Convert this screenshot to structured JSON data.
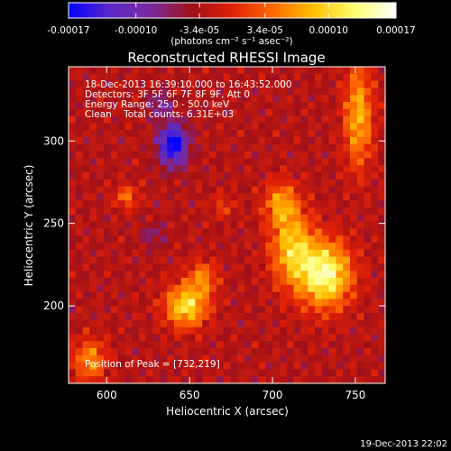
{
  "chart_data": {
    "type": "heatmap",
    "title": "Reconstructed RHESSI Image",
    "xlabel": "Heliocentric X (arcsec)",
    "ylabel": "Heliocentric Y (arcsec)",
    "xlim": [
      577,
      768
    ],
    "ylim": [
      153,
      345
    ],
    "x_ticks": [
      600,
      650,
      700,
      750
    ],
    "y_ticks": [
      200,
      250,
      300
    ],
    "x_tick_labels": [
      "600",
      "650",
      "700",
      "750"
    ],
    "y_tick_labels": [
      "200",
      "250",
      "300"
    ],
    "colorbar": {
      "range": [
        -0.00017,
        0.00017
      ],
      "ticks": [
        -0.00017,
        -0.0001,
        -3.4e-05,
        3.4e-05,
        0.0001,
        0.00017
      ],
      "tick_labels": [
        "-0.00017",
        "-0.00010",
        "-3.4e-05",
        "3.4e-05",
        "0.00010",
        "0.00017"
      ],
      "units_label": "(photons cm⁻² s⁻¹ asec⁻²)",
      "colormap": [
        "#0000ff",
        "#5a28c8",
        "#7a2aa0",
        "#a01018",
        "#e02008",
        "#ff6a00",
        "#ffc000",
        "#ffff70",
        "#ffffff"
      ]
    },
    "info_lines": [
      "18-Dec-2013 16:39:10.000 to 16:43:52.000",
      "Detectors: 3F 5F 6F 7F 8F 9F, Att 0",
      "Energy Range: 25.0 - 50.0 keV",
      "Clean    Total counts: 6.31E+03"
    ],
    "peak_label": "Position of Peak = [732,219]",
    "peak_position": [
      732,
      219
    ],
    "sources": [
      {
        "x": 732,
        "y": 219,
        "amplitude": 0.00017,
        "sigma_x": 11,
        "sigma_y": 14
      },
      {
        "x": 712,
        "y": 235,
        "amplitude": 0.00012,
        "sigma_x": 9,
        "sigma_y": 16
      },
      {
        "x": 705,
        "y": 262,
        "amplitude": 9e-05,
        "sigma_x": 7,
        "sigma_y": 9
      },
      {
        "x": 648,
        "y": 200,
        "amplitude": 0.00014,
        "sigma_x": 9,
        "sigma_y": 9
      },
      {
        "x": 658,
        "y": 217,
        "amplitude": 8e-05,
        "sigma_x": 6,
        "sigma_y": 7
      },
      {
        "x": 752,
        "y": 315,
        "amplitude": 0.00011,
        "sigma_x": 6,
        "sigma_y": 22
      },
      {
        "x": 590,
        "y": 167,
        "amplitude": 9e-05,
        "sigma_x": 7,
        "sigma_y": 9
      },
      {
        "x": 612,
        "y": 266,
        "amplitude": 7e-05,
        "sigma_x": 5,
        "sigma_y": 5
      },
      {
        "x": 670,
        "y": 260,
        "amplitude": 4e-05,
        "sigma_x": 5,
        "sigma_y": 5
      },
      {
        "x": 640,
        "y": 298,
        "amplitude": -0.00015,
        "sigma_x": 6,
        "sigma_y": 9
      },
      {
        "x": 632,
        "y": 322,
        "amplitude": -6e-05,
        "sigma_x": 5,
        "sigma_y": 5
      },
      {
        "x": 628,
        "y": 243,
        "amplitude": -4e-05,
        "sigma_x": 5,
        "sigma_y": 5
      }
    ]
  },
  "footer": {
    "timestamp": "19-Dec-2013 22:02"
  }
}
